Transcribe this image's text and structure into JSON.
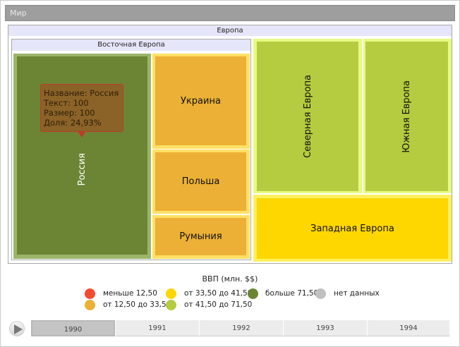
{
  "title": "Мир",
  "europe": {
    "label": "Европа",
    "eastern": {
      "label": "Восточная Европа",
      "russia": "Россия",
      "ukraine": "Украина",
      "poland": "Польша",
      "romania": "Румыния"
    },
    "northern": "Северная Европа",
    "southern": "Южная Европа",
    "western": "Западная Европа"
  },
  "tooltip": {
    "lines": [
      "Название: Россия",
      "Текст: 100",
      "Размер: 100",
      "Доля: 24,93%"
    ]
  },
  "legend": {
    "title": "ВВП (млн. $$)",
    "items": [
      {
        "label": "меньше 12,50",
        "color": "#f44a30"
      },
      {
        "label": "от 12,50 до 33,50",
        "color": "#ebb035"
      },
      {
        "label": "от 33,50 до 41,50",
        "color": "#ffd700"
      },
      {
        "label": "от 41,50 до 71,50",
        "color": "#b5cc40"
      },
      {
        "label": "больше 71,50",
        "color": "#6b8535"
      },
      {
        "label": "нет данных",
        "color": "#c0c0c0"
      }
    ]
  },
  "timeline": {
    "years": [
      "1990",
      "1991",
      "1992",
      "1993",
      "1994"
    ],
    "selected": "1990"
  }
}
